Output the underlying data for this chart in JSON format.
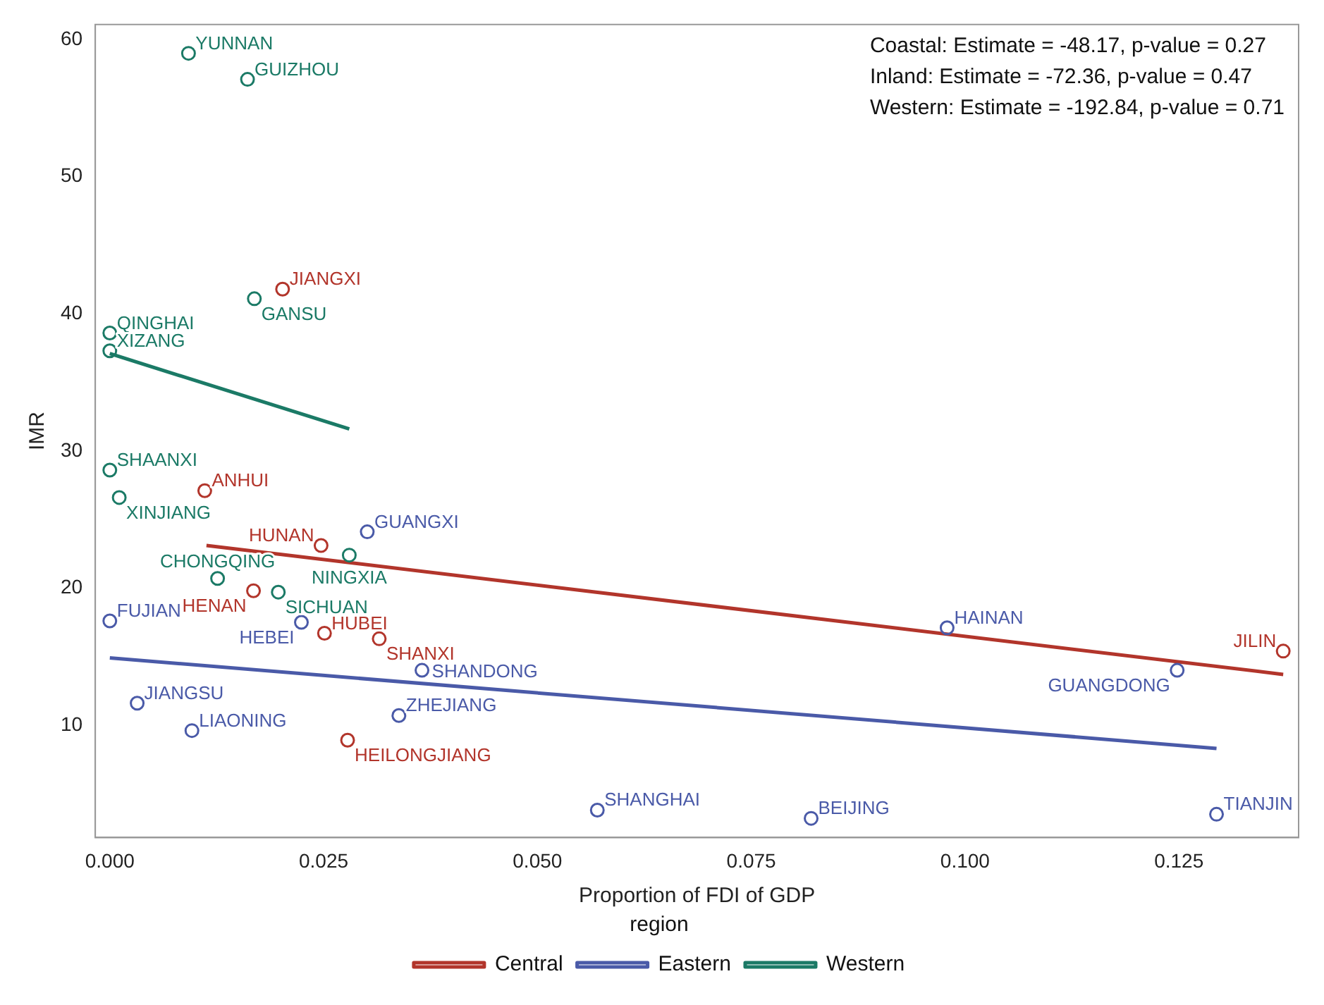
{
  "chart_data": {
    "type": "scatter",
    "xlabel": "Proportion of FDI of GDP",
    "ylabel": "IMR",
    "legend_title": "region",
    "legend": "bottom",
    "grid": false,
    "xlim": [
      -0.0017,
      0.139
    ],
    "ylim": [
      1.8,
      61.1
    ],
    "xticks": [
      {
        "value": 0,
        "label": "0.000"
      },
      {
        "value": 0.025,
        "label": "0.025"
      },
      {
        "value": 0.05,
        "label": "0.050"
      },
      {
        "value": 0.075,
        "label": "0.075"
      },
      {
        "value": 0.1,
        "label": "0.100"
      },
      {
        "value": 0.125,
        "label": "0.125"
      }
    ],
    "yticks": [
      10,
      20,
      30,
      40,
      50,
      60
    ],
    "series": [
      {
        "type": "scatter",
        "marker": "circle",
        "color": "#b2352b",
        "x": [
          0.0202,
          0.0111,
          0.0247,
          0.0168,
          0.0251,
          0.0315,
          0.0278,
          0.1372
        ],
        "values": [
          41.8,
          27.1,
          23.1,
          19.8,
          16.7,
          16.3,
          8.9,
          15.4
        ]
      },
      {
        "type": "scatter",
        "marker": "circle",
        "color": "#4a5aa8",
        "x": [
          0.0301,
          0,
          0.0224,
          0.0365,
          0.0032,
          0.0338,
          0.0096,
          0.0979,
          0.1248,
          0.057,
          0.082,
          0.1294
        ],
        "values": [
          24.1,
          17.6,
          17.5,
          14.0,
          11.6,
          10.7,
          9.6,
          17.1,
          14.0,
          3.8,
          3.2,
          3.5
        ]
      },
      {
        "type": "scatter",
        "marker": "circle",
        "color": "#1b7a66",
        "x": [
          0.0092,
          0.0161,
          0.0169,
          0,
          0,
          0,
          0.0011,
          0.028,
          0.0126,
          0.0197
        ],
        "values": [
          59.0,
          57.1,
          41.1,
          38.6,
          37.3,
          28.6,
          26.6,
          22.4,
          20.7,
          19.7
        ]
      },
      {
        "type": "line",
        "marker": "none",
        "line_style": "solid",
        "name": "Central",
        "color": "#b2352b",
        "x": [
          0.0113,
          0.1372
        ],
        "values": [
          23.1,
          13.7
        ]
      },
      {
        "type": "line",
        "marker": "none",
        "line_style": "solid",
        "name": "Eastern",
        "color": "#4a5aa8",
        "x": [
          0,
          0.1294
        ],
        "values": [
          14.9,
          8.3
        ]
      },
      {
        "type": "line",
        "marker": "none",
        "line_style": "solid",
        "name": "Western",
        "color": "#1b7a66",
        "x": [
          0,
          0.028
        ],
        "values": [
          37.1,
          31.6
        ]
      }
    ],
    "annotations": [
      "Coastal: Estimate = -48.17, p-value = 0.27",
      "Inland: Estimate = -72.36, p-value = 0.47",
      "Western: Estimate = -192.84, p-value = 0.71",
      {
        "text": "JIANGXI",
        "x": 0.0202,
        "y": 41.8
      },
      {
        "text": "ANHUI",
        "x": 0.0111,
        "y": 27.1
      },
      {
        "text": "HUNAN",
        "x": 0.0247,
        "y": 23.1
      },
      {
        "text": "HENAN",
        "x": 0.0168,
        "y": 19.8
      },
      {
        "text": "HUBEI",
        "x": 0.0251,
        "y": 16.7
      },
      {
        "text": "SHANXI",
        "x": 0.0315,
        "y": 16.3
      },
      {
        "text": "HEILONGJIANG",
        "x": 0.0278,
        "y": 8.9
      },
      {
        "text": "JILIN",
        "x": 0.1372,
        "y": 15.4
      },
      {
        "text": "GUANGXI",
        "x": 0.0301,
        "y": 24.1
      },
      {
        "text": "FUJIAN",
        "x": 0,
        "y": 17.6
      },
      {
        "text": "HEBEI",
        "x": 0.0224,
        "y": 17.5
      },
      {
        "text": "SHANDONG",
        "x": 0.0365,
        "y": 14.0
      },
      {
        "text": "JIANGSU",
        "x": 0.0032,
        "y": 11.6
      },
      {
        "text": "ZHEJIANG",
        "x": 0.0338,
        "y": 10.7
      },
      {
        "text": "LIAONING",
        "x": 0.0096,
        "y": 9.6
      },
      {
        "text": "HAINAN",
        "x": 0.0979,
        "y": 17.1
      },
      {
        "text": "GUANGDONG",
        "x": 0.1248,
        "y": 14.0
      },
      {
        "text": "SHANGHAI",
        "x": 0.057,
        "y": 3.8
      },
      {
        "text": "BEIJING",
        "x": 0.082,
        "y": 3.2
      },
      {
        "text": "TIANJIN",
        "x": 0.1294,
        "y": 3.5
      },
      {
        "text": "YUNNAN",
        "x": 0.0092,
        "y": 59.0
      },
      {
        "text": "GUIZHOU",
        "x": 0.0161,
        "y": 57.1
      },
      {
        "text": "GANSU",
        "x": 0.0169,
        "y": 41.1
      },
      {
        "text": "QINGHAI",
        "x": 0,
        "y": 38.6
      },
      {
        "text": "XIZANG",
        "x": 0,
        "y": 37.3
      },
      {
        "text": "SHAANXI",
        "x": 0,
        "y": 28.6
      },
      {
        "text": "XINJIANG",
        "x": 0.0011,
        "y": 26.6
      },
      {
        "text": "NINGXIA",
        "x": 0.028,
        "y": 22.4
      },
      {
        "text": "CHONGQING",
        "x": 0.0126,
        "y": 20.7
      },
      {
        "text": "SICHUAN",
        "x": 0.0197,
        "y": 19.7
      }
    ]
  }
}
